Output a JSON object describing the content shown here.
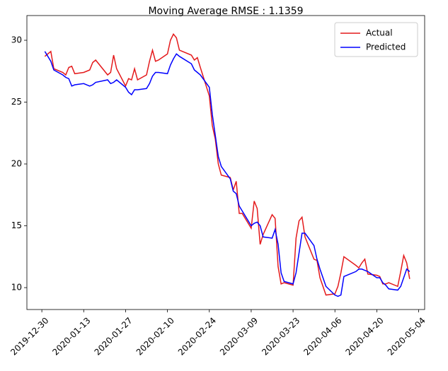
{
  "chart_data": {
    "type": "line",
    "title": "Moving Average RMSE : 1.1359",
    "x": [
      "2019-12-31",
      "2020-01-02",
      "2020-01-03",
      "2020-01-06",
      "2020-01-07",
      "2020-01-08",
      "2020-01-09",
      "2020-01-10",
      "2020-01-13",
      "2020-01-14",
      "2020-01-15",
      "2020-01-16",
      "2020-01-17",
      "2020-01-21",
      "2020-01-22",
      "2020-01-23",
      "2020-01-24",
      "2020-01-27",
      "2020-01-28",
      "2020-01-29",
      "2020-01-30",
      "2020-01-31",
      "2020-02-03",
      "2020-02-04",
      "2020-02-05",
      "2020-02-06",
      "2020-02-07",
      "2020-02-10",
      "2020-02-11",
      "2020-02-12",
      "2020-02-13",
      "2020-02-14",
      "2020-02-18",
      "2020-02-19",
      "2020-02-20",
      "2020-02-21",
      "2020-02-24",
      "2020-02-25",
      "2020-02-26",
      "2020-02-27",
      "2020-02-28",
      "2020-03-02",
      "2020-03-03",
      "2020-03-04",
      "2020-03-05",
      "2020-03-06",
      "2020-03-09",
      "2020-03-10",
      "2020-03-11",
      "2020-03-12",
      "2020-03-13",
      "2020-03-16",
      "2020-03-17",
      "2020-03-18",
      "2020-03-19",
      "2020-03-20",
      "2020-03-23",
      "2020-03-24",
      "2020-03-25",
      "2020-03-26",
      "2020-03-27",
      "2020-03-30",
      "2020-03-31",
      "2020-04-01",
      "2020-04-02",
      "2020-04-03",
      "2020-04-06",
      "2020-04-07",
      "2020-04-08",
      "2020-04-09",
      "2020-04-13",
      "2020-04-14",
      "2020-04-15",
      "2020-04-16",
      "2020-04-17",
      "2020-04-20",
      "2020-04-21",
      "2020-04-22",
      "2020-04-23",
      "2020-04-24",
      "2020-04-27",
      "2020-04-28",
      "2020-04-29",
      "2020-04-30",
      "2020-05-01"
    ],
    "series": [
      {
        "name": "Actual",
        "color": "#e41a1c",
        "values": [
          28.7,
          29.1,
          27.7,
          27.4,
          27.2,
          27.8,
          27.9,
          27.3,
          27.4,
          27.5,
          27.6,
          28.2,
          28.4,
          27.2,
          27.4,
          28.8,
          27.7,
          26.3,
          26.9,
          26.8,
          27.7,
          26.8,
          27.2,
          28.3,
          29.2,
          28.3,
          28.4,
          28.9,
          30.0,
          30.5,
          30.2,
          29.2,
          28.8,
          28.4,
          28.6,
          27.8,
          25.5,
          23.1,
          22.0,
          20.0,
          19.1,
          18.9,
          17.9,
          18.6,
          16.0,
          16.0,
          14.8,
          17.0,
          16.4,
          13.5,
          14.3,
          15.9,
          15.6,
          11.7,
          10.3,
          10.4,
          10.2,
          14.0,
          15.4,
          15.7,
          14.1,
          12.3,
          12.2,
          10.8,
          10.1,
          9.4,
          9.5,
          10.1,
          11.2,
          12.5,
          11.8,
          11.6,
          12.0,
          12.3,
          11.1,
          11.0,
          10.9,
          10.3,
          10.3,
          10.4,
          10.1,
          11.3,
          12.6,
          12.0,
          10.7
        ]
      },
      {
        "name": "Predicted",
        "color": "#0000ff",
        "values": [
          29.1,
          28.3,
          27.6,
          27.2,
          27.0,
          26.9,
          26.3,
          26.4,
          26.5,
          26.4,
          26.3,
          26.4,
          26.6,
          26.8,
          26.5,
          26.6,
          26.8,
          26.2,
          25.8,
          25.6,
          26.0,
          26.0,
          26.1,
          26.5,
          27.1,
          27.4,
          27.4,
          27.3,
          28.0,
          28.5,
          28.9,
          28.7,
          28.1,
          27.6,
          27.4,
          27.2,
          26.2,
          24.0,
          22.3,
          20.6,
          19.8,
          18.8,
          17.8,
          17.6,
          16.6,
          16.2,
          15.0,
          15.2,
          15.3,
          15.0,
          14.1,
          14.0,
          14.7,
          13.5,
          11.2,
          10.5,
          10.3,
          11.2,
          12.8,
          14.4,
          14.4,
          13.4,
          12.3,
          11.5,
          10.8,
          10.1,
          9.4,
          9.3,
          9.4,
          10.9,
          11.3,
          11.5,
          11.5,
          11.4,
          11.3,
          10.8,
          10.8,
          10.4,
          10.2,
          9.9,
          9.8,
          10.1,
          10.8,
          11.5,
          11.3
        ]
      }
    ],
    "xlim": [
      "2019-12-25",
      "2020-05-06"
    ],
    "xticks": [
      "2019-12-30",
      "2020-01-13",
      "2020-01-27",
      "2020-02-10",
      "2020-02-24",
      "2020-03-09",
      "2020-03-23",
      "2020-04-06",
      "2020-04-20",
      "2020-05-04"
    ],
    "ylim": [
      8.23,
      32.0
    ],
    "yticks": [
      10,
      15,
      20,
      25,
      30
    ],
    "legend": "upper right"
  }
}
